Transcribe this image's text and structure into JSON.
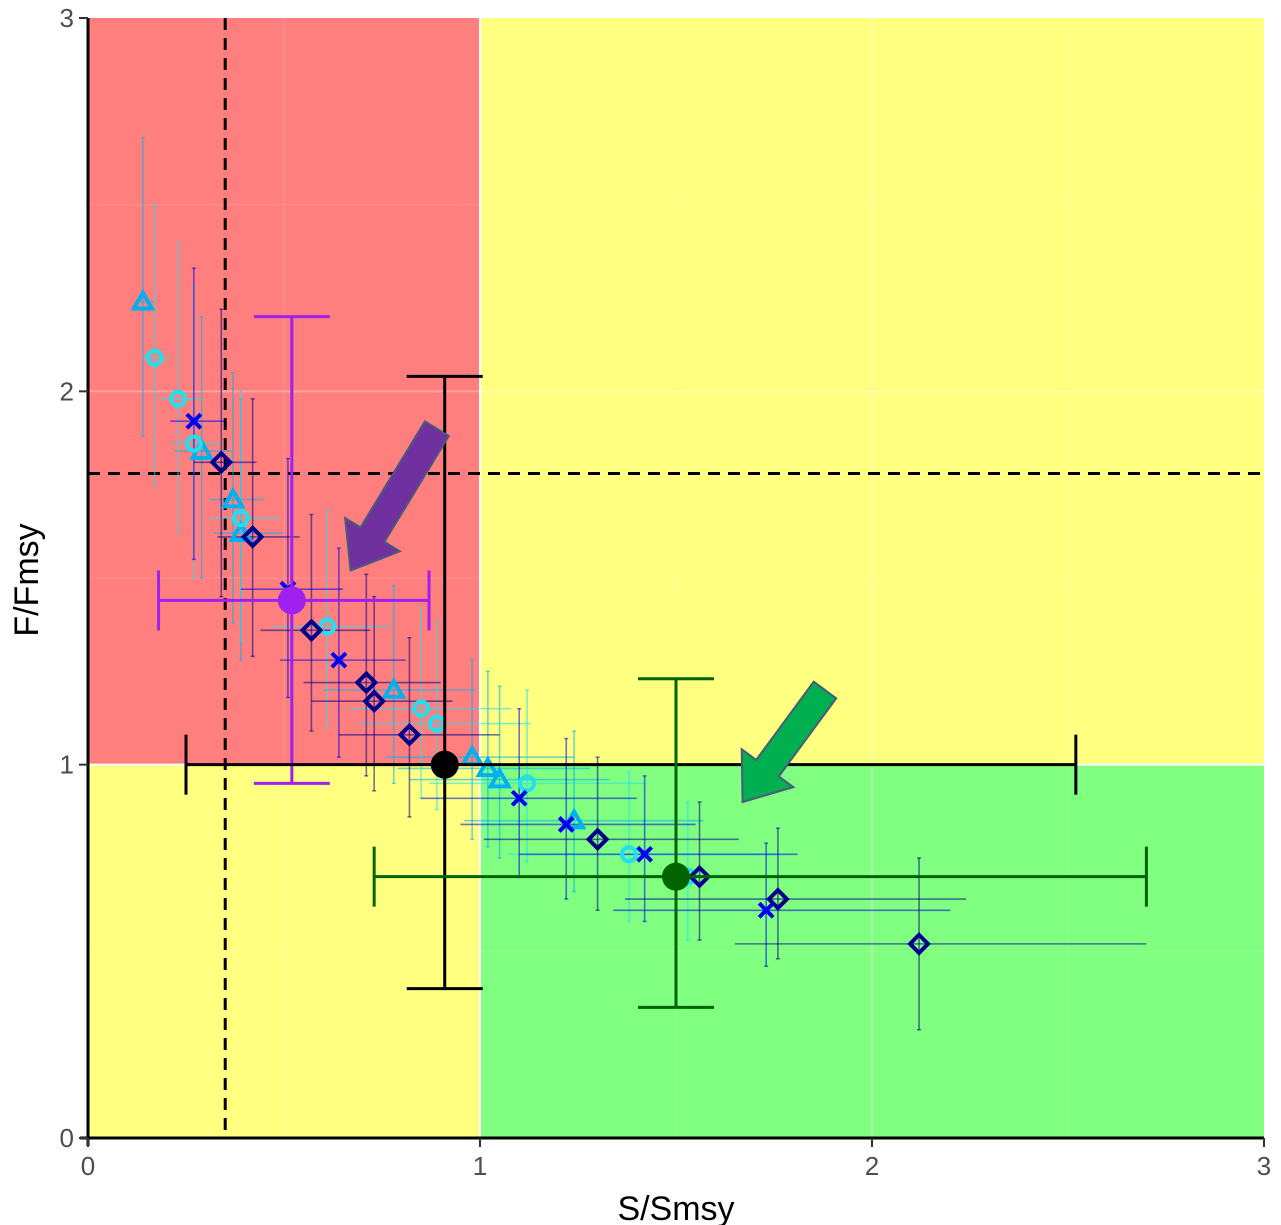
{
  "chart_data": {
    "type": "scatter",
    "title": "",
    "xlabel": "S/Smsy",
    "ylabel": "F/Fmsy",
    "xlim": [
      0,
      3
    ],
    "ylim": [
      0,
      3
    ],
    "x_ticks": [
      "0",
      "1",
      "2",
      "3"
    ],
    "y_ticks": [
      "0",
      "1",
      "2",
      "3"
    ],
    "grid": true,
    "zones": [
      {
        "name": "red",
        "x": [
          0,
          1
        ],
        "y": [
          1,
          3
        ],
        "color": "#ff7f7f"
      },
      {
        "name": "yellow-top",
        "x": [
          1,
          3
        ],
        "y": [
          1,
          3
        ],
        "color": "#ffff80"
      },
      {
        "name": "yellow-bottom",
        "x": [
          0,
          1
        ],
        "y": [
          0,
          1
        ],
        "color": "#ffff80"
      },
      {
        "name": "green",
        "x": [
          1,
          3
        ],
        "y": [
          0,
          1
        ],
        "color": "#80ff80"
      }
    ],
    "reference_lines": {
      "vertical_x": 0.35,
      "horizontal_y": 1.78,
      "style": "dashed",
      "color": "#000000"
    },
    "series": [
      {
        "marker": "triangle",
        "color": "#00b0f0",
        "points": [
          {
            "x": 0.14,
            "y": 2.24,
            "xerr": [
              0.12,
              0.17
            ],
            "yerr": [
              1.88,
              2.68
            ]
          },
          {
            "x": 0.29,
            "y": 1.84,
            "xerr": [
              0.22,
              0.37
            ],
            "yerr": [
              1.5,
              2.2
            ]
          },
          {
            "x": 0.37,
            "y": 1.71,
            "xerr": [
              0.31,
              0.45
            ],
            "yerr": [
              1.38,
              2.05
            ]
          },
          {
            "x": 0.39,
            "y": 1.62,
            "xerr": [
              0.32,
              0.5
            ],
            "yerr": [
              1.28,
              1.98
            ]
          },
          {
            "x": 0.78,
            "y": 1.2,
            "xerr": [
              0.6,
              0.99
            ],
            "yerr": [
              0.95,
              1.48
            ]
          },
          {
            "x": 0.98,
            "y": 1.02,
            "xerr": [
              0.76,
              1.24
            ],
            "yerr": [
              0.8,
              1.28
            ]
          },
          {
            "x": 1.02,
            "y": 0.99,
            "xerr": [
              0.79,
              1.28
            ],
            "yerr": [
              0.78,
              1.25
            ]
          },
          {
            "x": 1.05,
            "y": 0.96,
            "xerr": [
              0.82,
              1.33
            ],
            "yerr": [
              0.75,
              1.21
            ]
          },
          {
            "x": 1.24,
            "y": 0.85,
            "xerr": [
              0.96,
              1.57
            ],
            "yerr": [
              0.66,
              1.09
            ]
          }
        ]
      },
      {
        "marker": "circle",
        "color": "#20e0f0",
        "points": [
          {
            "x": 0.17,
            "y": 2.09,
            "xerr": [
              0.14,
              0.21
            ],
            "yerr": [
              1.75,
              2.5
            ]
          },
          {
            "x": 0.23,
            "y": 1.98,
            "xerr": [
              0.18,
              0.29
            ],
            "yerr": [
              1.62,
              2.4
            ]
          },
          {
            "x": 0.27,
            "y": 1.86,
            "xerr": [
              0.21,
              0.34
            ],
            "yerr": [
              1.5,
              2.28
            ]
          },
          {
            "x": 0.39,
            "y": 1.66,
            "xerr": [
              0.31,
              0.49
            ],
            "yerr": [
              1.33,
              2.0
            ]
          },
          {
            "x": 0.61,
            "y": 1.37,
            "xerr": [
              0.47,
              0.77
            ],
            "yerr": [
              1.1,
              1.68
            ]
          },
          {
            "x": 0.85,
            "y": 1.15,
            "xerr": [
              0.66,
              1.08
            ],
            "yerr": [
              0.91,
              1.42
            ]
          },
          {
            "x": 0.89,
            "y": 1.11,
            "xerr": [
              0.69,
              1.13
            ],
            "yerr": [
              0.88,
              1.38
            ]
          },
          {
            "x": 1.12,
            "y": 0.95,
            "xerr": [
              0.87,
              1.42
            ],
            "yerr": [
              0.74,
              1.2
            ]
          },
          {
            "x": 1.38,
            "y": 0.76,
            "xerr": [
              1.07,
              1.76
            ],
            "yerr": [
              0.58,
              0.98
            ]
          },
          {
            "x": 1.53,
            "y": 0.7,
            "xerr": [
              1.19,
              1.95
            ],
            "yerr": [
              0.53,
              0.9
            ]
          }
        ]
      },
      {
        "marker": "cross",
        "color": "#0000ee",
        "points": [
          {
            "x": 0.27,
            "y": 1.92,
            "xerr": [
              0.21,
              0.35
            ],
            "yerr": [
              1.55,
              2.33
            ]
          },
          {
            "x": 0.51,
            "y": 1.47,
            "xerr": [
              0.39,
              0.65
            ],
            "yerr": [
              1.18,
              1.82
            ]
          },
          {
            "x": 0.64,
            "y": 1.28,
            "xerr": [
              0.49,
              0.81
            ],
            "yerr": [
              1.02,
              1.58
            ]
          },
          {
            "x": 1.1,
            "y": 0.91,
            "xerr": [
              0.85,
              1.4
            ],
            "yerr": [
              0.7,
              1.15
            ]
          },
          {
            "x": 1.22,
            "y": 0.84,
            "xerr": [
              0.95,
              1.55
            ],
            "yerr": [
              0.64,
              1.07
            ]
          },
          {
            "x": 1.42,
            "y": 0.76,
            "xerr": [
              1.1,
              1.81
            ],
            "yerr": [
              0.58,
              0.97
            ]
          },
          {
            "x": 1.73,
            "y": 0.61,
            "xerr": [
              1.34,
              2.2
            ],
            "yerr": [
              0.46,
              0.79
            ]
          }
        ]
      },
      {
        "marker": "diamond",
        "color": "#00008b",
        "points": [
          {
            "x": 0.34,
            "y": 1.81,
            "xerr": [
              0.27,
              0.43
            ],
            "yerr": [
              1.45,
              2.22
            ]
          },
          {
            "x": 0.42,
            "y": 1.61,
            "xerr": [
              0.33,
              0.54
            ],
            "yerr": [
              1.29,
              1.98
            ]
          },
          {
            "x": 0.57,
            "y": 1.36,
            "xerr": [
              0.44,
              0.72
            ],
            "yerr": [
              1.09,
              1.67
            ]
          },
          {
            "x": 0.71,
            "y": 1.22,
            "xerr": [
              0.55,
              0.9
            ],
            "yerr": [
              0.97,
              1.51
            ]
          },
          {
            "x": 0.73,
            "y": 1.17,
            "xerr": [
              0.57,
              0.93
            ],
            "yerr": [
              0.93,
              1.45
            ]
          },
          {
            "x": 0.82,
            "y": 1.08,
            "xerr": [
              0.64,
              1.05
            ],
            "yerr": [
              0.86,
              1.34
            ]
          },
          {
            "x": 1.3,
            "y": 0.8,
            "xerr": [
              1.01,
              1.66
            ],
            "yerr": [
              0.61,
              1.02
            ]
          },
          {
            "x": 1.56,
            "y": 0.7,
            "xerr": [
              1.21,
              1.98
            ],
            "yerr": [
              0.53,
              0.9
            ]
          },
          {
            "x": 1.76,
            "y": 0.64,
            "xerr": [
              1.37,
              2.24
            ],
            "yerr": [
              0.48,
              0.83
            ]
          },
          {
            "x": 2.12,
            "y": 0.52,
            "xerr": [
              1.65,
              2.7
            ],
            "yerr": [
              0.29,
              0.75
            ]
          }
        ]
      }
    ],
    "summary_points": [
      {
        "name": "purple",
        "x": 0.52,
        "y": 1.44,
        "xerr": [
          0.18,
          0.87
        ],
        "yerr": [
          0.95,
          2.2
        ],
        "color": "#a020f0"
      },
      {
        "name": "black",
        "x": 0.91,
        "y": 1.0,
        "xerr": [
          0.25,
          2.52
        ],
        "yerr": [
          0.4,
          2.04
        ],
        "color": "#000000"
      },
      {
        "name": "darkgreen",
        "x": 1.5,
        "y": 0.7,
        "xerr": [
          0.73,
          2.7
        ],
        "yerr": [
          0.35,
          1.23
        ],
        "color": "#006400"
      }
    ],
    "arrows": [
      {
        "name": "purple-arrow",
        "from": [
          0.89,
          1.9
        ],
        "to": [
          0.67,
          1.52
        ],
        "color": "#7030a0"
      },
      {
        "name": "green-arrow",
        "from": [
          1.88,
          1.2
        ],
        "to": [
          1.67,
          0.9
        ],
        "color": "#00b050"
      }
    ]
  }
}
